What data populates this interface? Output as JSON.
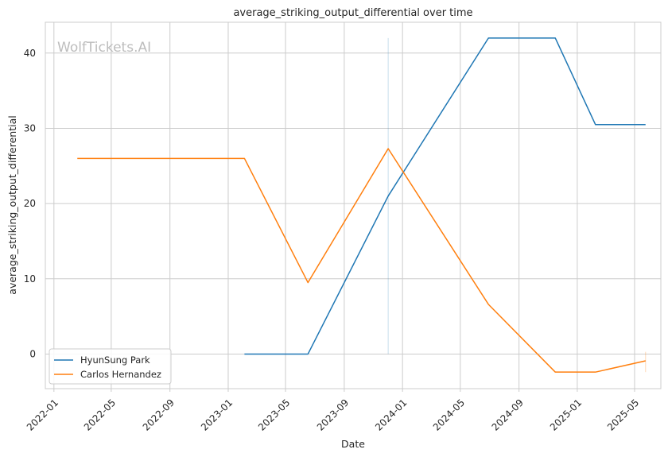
{
  "chart_data": {
    "type": "line",
    "title": "average_striking_output_differential over time",
    "xlabel": "Date",
    "ylabel": "average_striking_output_differential",
    "watermark": "WolfTickets.AI",
    "grid": true,
    "legend_position": "lower-left",
    "xlim": [
      "2021-12-14",
      "2025-06-25"
    ],
    "ylim": [
      -4.6,
      44.1
    ],
    "x_ticks": [
      "2022-01",
      "2022-05",
      "2022-09",
      "2023-01",
      "2023-05",
      "2023-09",
      "2024-01",
      "2024-05",
      "2024-09",
      "2025-01",
      "2025-05"
    ],
    "y_ticks": [
      0,
      10,
      20,
      30,
      40
    ],
    "series": [
      {
        "name": "HyunSung Park",
        "color": "#1f77b4",
        "x": [
          "2023-02-04",
          "2023-06-17",
          "2023-12-02",
          "2024-06-29",
          "2024-11-16",
          "2025-02-08",
          "2025-05-24"
        ],
        "y": [
          0.0,
          0.0,
          21.0,
          42.0,
          42.0,
          30.5,
          30.5
        ]
      },
      {
        "name": "Carlos Hernandez",
        "color": "#ff7f0e",
        "x": [
          "2022-02-19",
          "2023-02-04",
          "2023-06-17",
          "2023-12-02",
          "2024-06-29",
          "2024-11-16",
          "2025-02-08",
          "2025-05-24"
        ],
        "y": [
          26.0,
          26.0,
          9.5,
          27.3,
          6.6,
          -2.4,
          -2.4,
          -0.9
        ]
      }
    ]
  }
}
